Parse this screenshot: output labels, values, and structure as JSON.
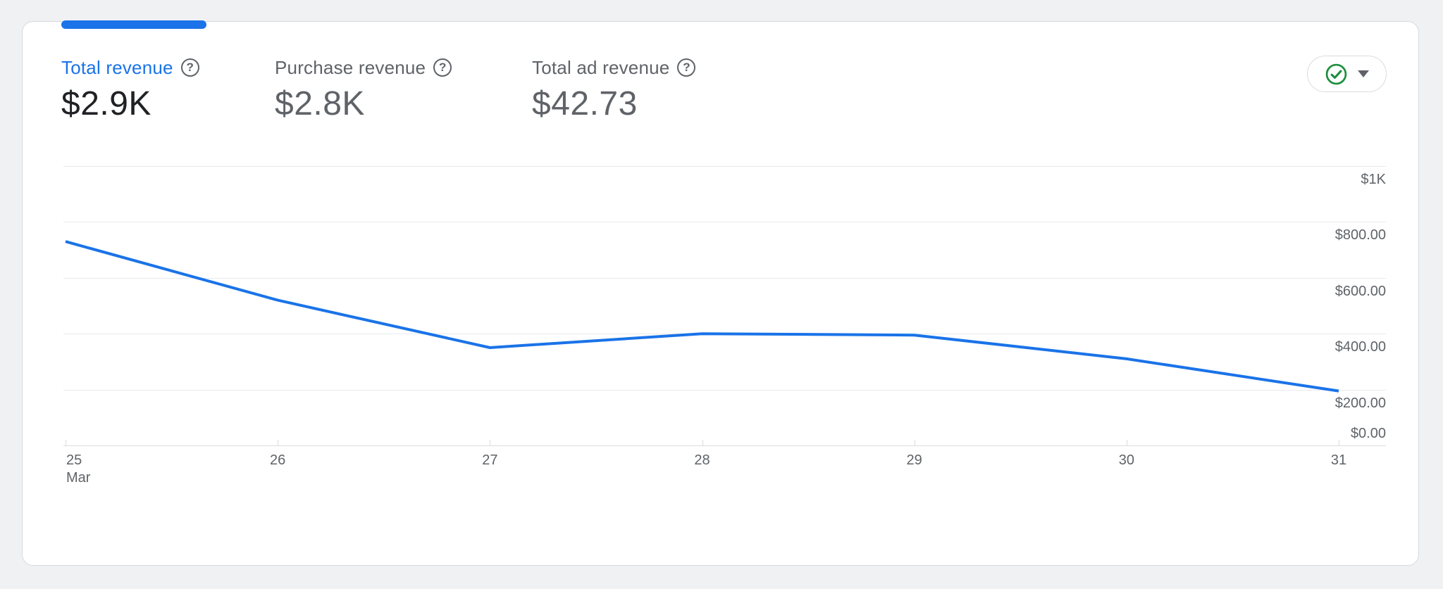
{
  "card": {
    "metrics": [
      {
        "label": "Total revenue",
        "value": "$2.9K",
        "selected": true
      },
      {
        "label": "Purchase revenue",
        "value": "$2.8K",
        "selected": false
      },
      {
        "label": "Total ad revenue",
        "value": "$42.73",
        "selected": false
      }
    ],
    "help_icon_glyph": "?",
    "status_button": {
      "icon": "check-circle",
      "check_color": "#1e8e3e"
    }
  },
  "colors": {
    "accent_blue": "#1a73e8",
    "text_dark": "#202124",
    "text_gray": "#5f6368",
    "gridline": "#e8eaed",
    "axis": "#dadce0",
    "green": "#1e8e3e",
    "page_background": "#f0f1f3",
    "card_background": "#ffffff"
  },
  "chart_data": {
    "type": "line",
    "title": "",
    "x_labels": [
      "25",
      "26",
      "27",
      "28",
      "29",
      "30",
      "31"
    ],
    "x_month_label": "Mar",
    "series": [
      {
        "name": "Total revenue",
        "values": [
          730,
          520,
          350,
          400,
          395,
          310,
          195
        ],
        "color": "#1a73e8"
      }
    ],
    "y_ticks": [
      {
        "label": "$1K",
        "value": 1000
      },
      {
        "label": "$800.00",
        "value": 800
      },
      {
        "label": "$600.00",
        "value": 600
      },
      {
        "label": "$400.00",
        "value": 400
      },
      {
        "label": "$200.00",
        "value": 200
      },
      {
        "label": "$0.00",
        "value": 0
      }
    ],
    "ylim": [
      0,
      1000
    ],
    "grid": "horizontal",
    "legend": "none"
  }
}
